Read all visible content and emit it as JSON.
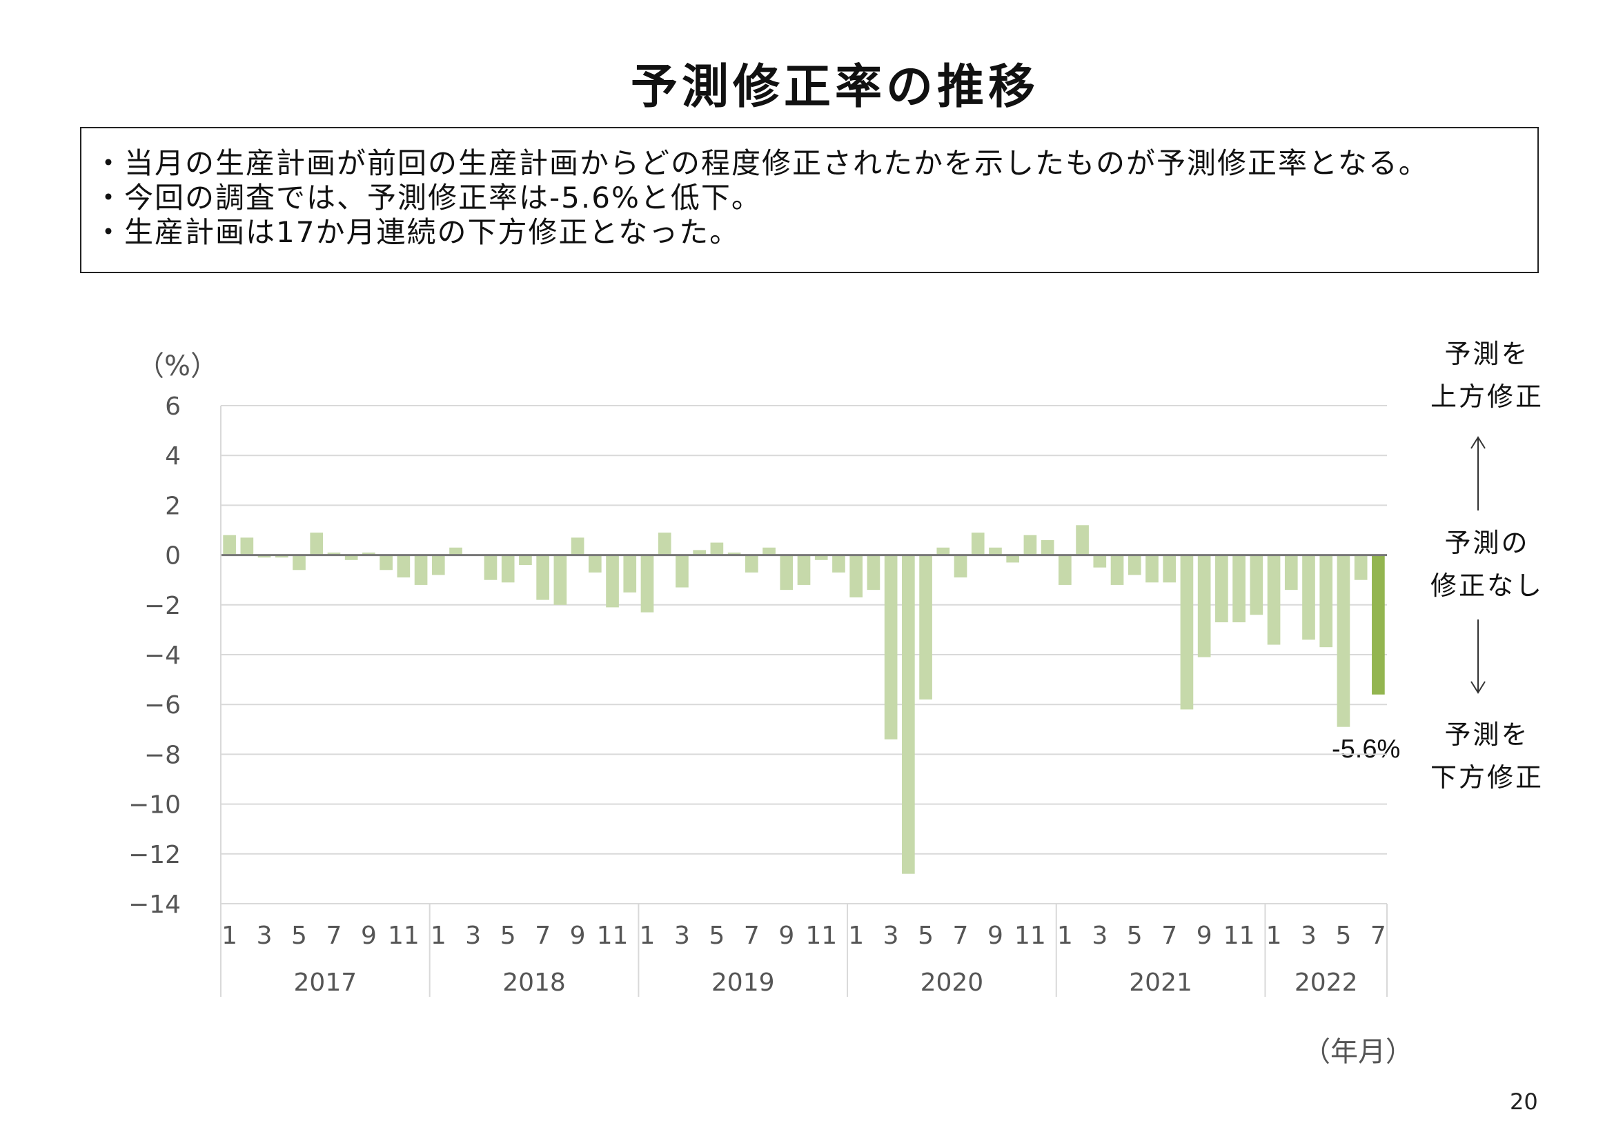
{
  "page": {
    "title": "予測修正率の推移",
    "notes": [
      "・当月の生産計画が前回の生産計画からどの程度修正されたかを示したものが予測修正率となる。",
      "・今回の調査では、予測修正率は-5.6%と低下。",
      "・生産計画は17か月連続の下方修正となった。"
    ],
    "page_number": "20"
  },
  "side_labels": {
    "up": "予測を\n上方修正",
    "none": "予測の\n修正なし",
    "down": "予測を\n下方修正"
  },
  "chart_data": {
    "type": "bar",
    "ylabel": "（%）",
    "xlabel": "（年月）",
    "ylim": [
      -14,
      6
    ],
    "yticks": [
      6,
      4,
      2,
      0,
      -2,
      -4,
      -6,
      -8,
      -10,
      -12,
      -14
    ],
    "ytick_labels": [
      "6",
      "4",
      "2",
      "0",
      "−2",
      "−4",
      "−6",
      "−8",
      "−10",
      "−12",
      "−14"
    ],
    "grid": true,
    "years": [
      "2017",
      "2018",
      "2019",
      "2020",
      "2021",
      "2022"
    ],
    "month_labels": [
      "1",
      "3",
      "5",
      "7",
      "9",
      "11"
    ],
    "bar_color": "#c6d9aa",
    "highlight_color": "#93b550",
    "latest_label": "-5.6%",
    "values": [
      0.8,
      0.7,
      -0.1,
      -0.1,
      -0.6,
      0.9,
      0.1,
      -0.2,
      0.1,
      -0.6,
      -0.9,
      -1.2,
      -0.8,
      0.3,
      0.0,
      -1.0,
      -1.1,
      -0.4,
      -1.8,
      -2.0,
      0.7,
      -0.7,
      -2.1,
      -1.5,
      -2.3,
      0.9,
      -1.3,
      0.2,
      0.5,
      0.1,
      -0.7,
      0.3,
      -1.4,
      -1.2,
      -0.2,
      -0.7,
      -1.7,
      -1.4,
      -7.4,
      -12.8,
      -5.8,
      0.3,
      -0.9,
      0.9,
      0.3,
      -0.3,
      0.8,
      0.6,
      -1.2,
      1.2,
      -0.5,
      -1.2,
      -0.8,
      -1.1,
      -1.1,
      -6.2,
      -4.1,
      -2.7,
      -2.7,
      -2.4,
      -3.6,
      -1.4,
      -3.4,
      -3.7,
      -6.9,
      -1.0,
      -5.6
    ]
  }
}
